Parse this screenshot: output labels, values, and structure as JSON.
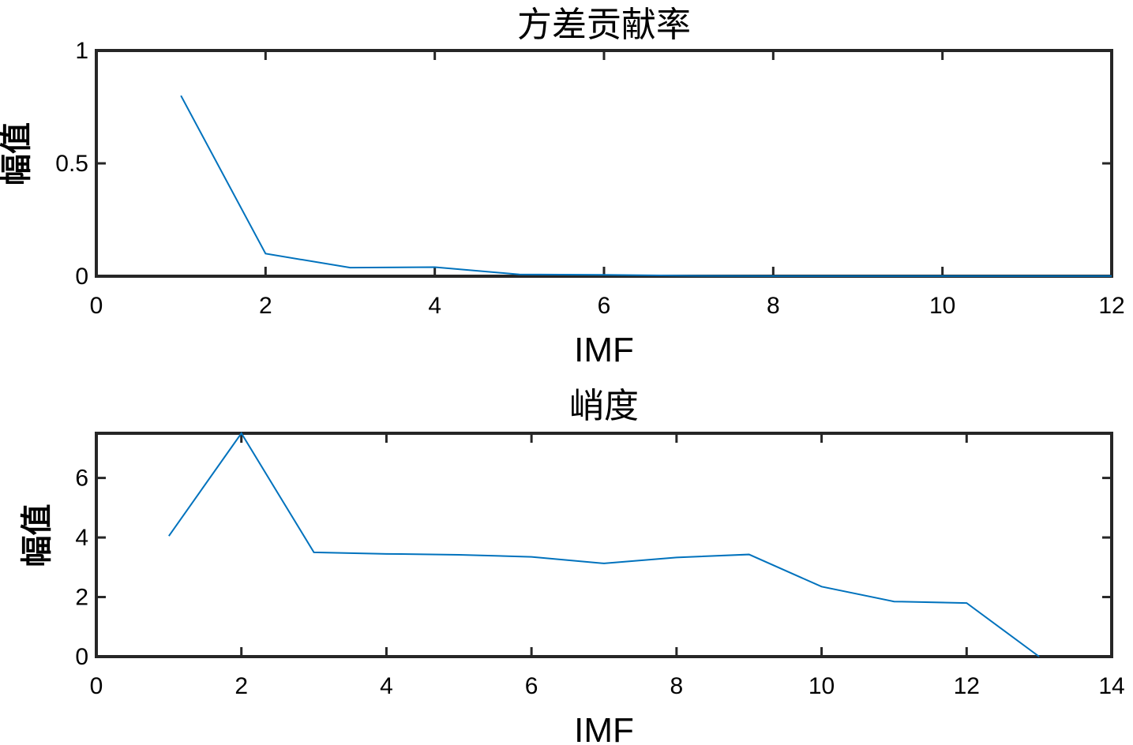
{
  "chart_data": [
    {
      "type": "line",
      "title": "方差贡献率",
      "xlabel": "IMF",
      "ylabel": "幅值",
      "xlim": [
        0,
        12
      ],
      "ylim": [
        0,
        1
      ],
      "xticks": [
        0,
        2,
        4,
        6,
        8,
        10,
        12
      ],
      "yticks": [
        0,
        0.5,
        1
      ],
      "x_tick_labels": [
        "0",
        "2",
        "4",
        "6",
        "8",
        "10",
        "12"
      ],
      "y_tick_labels": [
        "0",
        "0.5",
        "1"
      ],
      "grid": false,
      "series": [
        {
          "color": "#0072BD",
          "x": [
            1,
            2,
            3,
            4,
            5,
            6,
            7,
            8,
            9,
            10,
            11,
            12
          ],
          "y": [
            0.8,
            0.1,
            0.038,
            0.04,
            0.008,
            0.006,
            0.002,
            0.001,
            0.001,
            0.001,
            0.001,
            0.001
          ]
        }
      ]
    },
    {
      "type": "line",
      "title": "峭度",
      "xlabel": "IMF",
      "ylabel": "幅值",
      "xlim": [
        0,
        14
      ],
      "ylim": [
        0,
        7.5
      ],
      "xticks": [
        0,
        2,
        4,
        6,
        8,
        10,
        12,
        14
      ],
      "yticks": [
        0,
        2,
        4,
        6
      ],
      "x_tick_labels": [
        "0",
        "2",
        "4",
        "6",
        "8",
        "10",
        "12",
        "14"
      ],
      "y_tick_labels": [
        "0",
        "2",
        "4",
        "6"
      ],
      "grid": false,
      "series": [
        {
          "color": "#0072BD",
          "x": [
            1,
            2,
            3,
            4,
            5,
            6,
            7,
            8,
            9,
            10,
            11,
            12,
            13
          ],
          "y": [
            4.05,
            7.5,
            3.5,
            3.45,
            3.42,
            3.35,
            3.13,
            3.33,
            3.43,
            2.35,
            1.85,
            1.8,
            0.0
          ]
        }
      ]
    }
  ]
}
